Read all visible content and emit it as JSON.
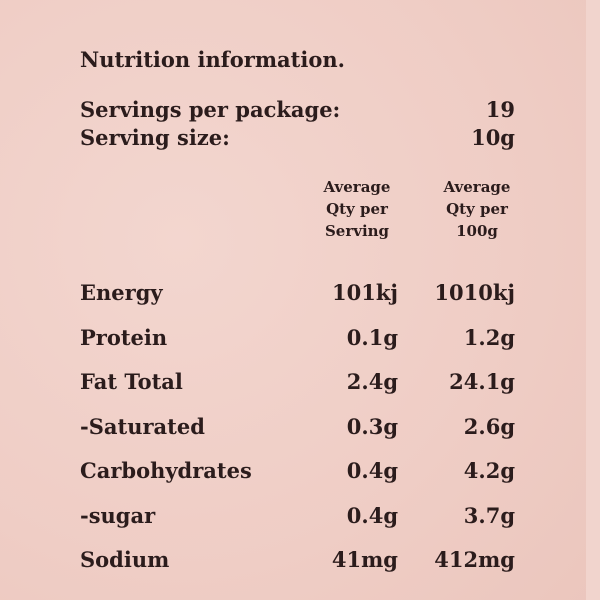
{
  "title": "Nutrition information.",
  "servings": [
    {
      "label": "Servings per package:",
      "value": "19"
    },
    {
      "label": "Serving size:",
      "value": "10g"
    }
  ],
  "table": {
    "header": [
      [
        "Average",
        "Qty per",
        "Serving"
      ],
      [
        "Average",
        "Qty per",
        "100g"
      ]
    ],
    "rows": [
      [
        "Energy",
        "101kj",
        "1010kj"
      ],
      [
        "Protein",
        "0.1g",
        "1.2g"
      ],
      [
        "Fat Total",
        "2.4g",
        "24.1g"
      ],
      [
        "-Saturated",
        "0.3g",
        "2.6g"
      ],
      [
        "Carbohydrates",
        "0.4g",
        "4.2g"
      ],
      [
        "-sugar",
        "0.4g",
        "3.7g"
      ],
      [
        "Sodium",
        "41mg",
        "412mg"
      ]
    ]
  }
}
